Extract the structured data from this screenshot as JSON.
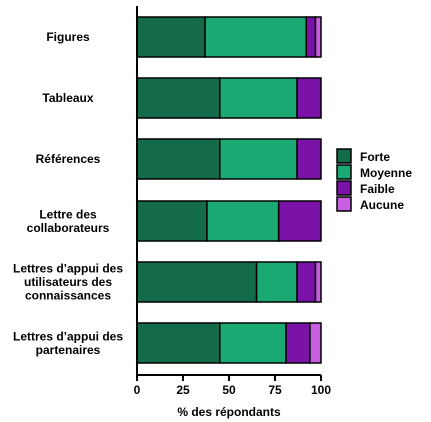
{
  "chart_data": {
    "type": "bar",
    "orientation": "horizontal",
    "stacked": true,
    "categories": [
      [
        "Figures"
      ],
      [
        "Tableaux"
      ],
      [
        "Références"
      ],
      [
        "Lettre des",
        "collaborateurs"
      ],
      [
        "Lettres d’appui des",
        "utilisateurs des",
        "connaissances"
      ],
      [
        "Lettres d’appui des",
        "partenaires"
      ]
    ],
    "series": [
      {
        "name": "Forte",
        "color": "#146b4a",
        "values": [
          37,
          45,
          45,
          38,
          65,
          45
        ]
      },
      {
        "name": "Moyenne",
        "color": "#1aa873",
        "values": [
          55,
          42,
          42,
          39,
          22,
          36
        ]
      },
      {
        "name": "Faible",
        "color": "#7a12a8",
        "values": [
          5,
          13,
          13,
          23,
          10,
          13
        ]
      },
      {
        "name": "Aucune",
        "color": "#c85fe0",
        "values": [
          3,
          0,
          0,
          0,
          3,
          6
        ]
      }
    ],
    "xlabel": "% des répondants",
    "xticks": [
      0,
      25,
      50,
      75,
      100
    ],
    "xlim": [
      0,
      100
    ],
    "grid": false,
    "legend": "right"
  }
}
